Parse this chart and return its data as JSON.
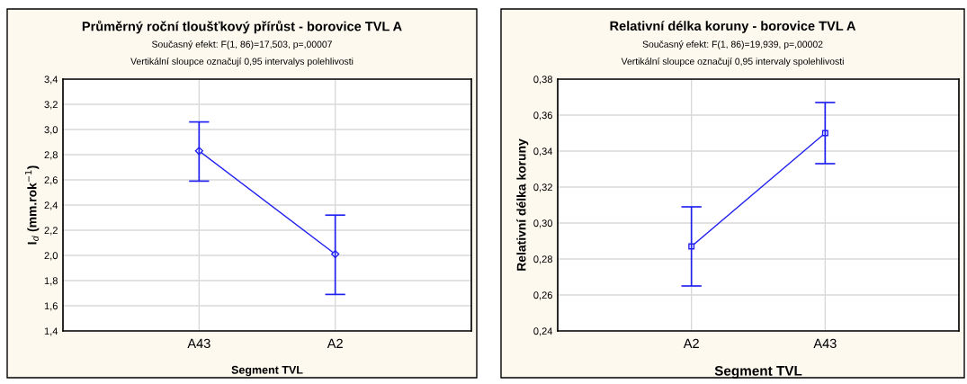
{
  "chart_data": [
    {
      "type": "line",
      "title": "Průměrný roční tloušťkový přírůst - borovice TVL A",
      "subtitle": "Současný efekt: F(1, 86)=17,503, p=,00007",
      "annotations": [
        "Vertikální sloupce označují 0,95 intervalys polehlivosti"
      ],
      "xlabel": "Segment TVL",
      "ylabel": "I$_{d}$ (mm.rok$^{−1}$)",
      "categories": [
        "A43",
        "A2"
      ],
      "series": [
        {
          "color": "#2020f0",
          "values": [
            2.83,
            2.01
          ],
          "errors": [
            [
              2.59,
              3.06
            ],
            [
              1.69,
              2.32
            ]
          ]
        }
      ],
      "ylim": [
        1.4,
        3.4
      ],
      "yticks": [
        {
          "value": 1.4,
          "label": "1,4"
        },
        {
          "value": 1.6,
          "label": "1,6"
        },
        {
          "value": 1.8,
          "label": "1,8"
        },
        {
          "value": 2.0,
          "label": "2,0"
        },
        {
          "value": 2.2,
          "label": "2,2"
        },
        {
          "value": 2.4,
          "label": "2,4"
        },
        {
          "value": 2.6,
          "label": "2,6"
        },
        {
          "value": 2.8,
          "label": "2,8"
        },
        {
          "value": 3.0,
          "label": "3,0"
        },
        {
          "value": 3.2,
          "label": "3,2"
        },
        {
          "value": 3.4,
          "label": "3,4"
        }
      ],
      "grid": true,
      "marker": "diamond",
      "line_style": "solid"
    },
    {
      "type": "line",
      "title": "Relativní délka koruny - borovice TVL A",
      "subtitle": "Současný efekt: F(1, 86)=19,939, p=,00002",
      "annotations": [
        "Vertikální sloupce označují 0,95 intervaly spolehlivosti"
      ],
      "xlabel": "Segment TVL",
      "ylabel": "Relativní délka koruny",
      "categories": [
        "A2",
        "A43"
      ],
      "series": [
        {
          "color": "#2020f0",
          "values": [
            0.287,
            0.35
          ],
          "errors": [
            [
              0.265,
              0.309
            ],
            [
              0.333,
              0.367
            ]
          ]
        }
      ],
      "ylim": [
        0.24,
        0.38
      ],
      "yticks": [
        {
          "value": 0.24,
          "label": "0,24"
        },
        {
          "value": 0.26,
          "label": "0,26"
        },
        {
          "value": 0.28,
          "label": "0,28"
        },
        {
          "value": 0.3,
          "label": "0,30"
        },
        {
          "value": 0.32,
          "label": "0,32"
        },
        {
          "value": 0.34,
          "label": "0,34"
        },
        {
          "value": 0.36,
          "label": "0,36"
        },
        {
          "value": 0.38,
          "label": "0,38"
        }
      ],
      "grid": true,
      "marker": "square",
      "line_style": "solid"
    }
  ]
}
